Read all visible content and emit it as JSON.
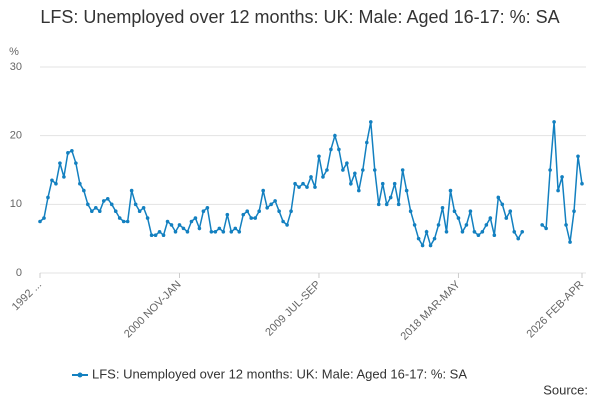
{
  "chart_data": {
    "type": "line",
    "title": "LFS: Unemployed over 12 months: UK: Male: Aged 16-17: %: SA",
    "y_label": "%",
    "source": "Source:",
    "categories": [
      "1992 ...",
      null,
      null,
      null,
      null,
      null,
      null,
      null,
      null,
      null,
      null,
      null,
      null,
      null,
      null,
      null,
      null,
      null,
      null,
      null,
      null,
      null,
      null,
      null,
      null,
      null,
      null,
      null,
      null,
      null,
      null,
      null,
      null,
      null,
      null,
      "2000 NOV-JAN",
      null,
      null,
      null,
      null,
      null,
      null,
      null,
      null,
      null,
      null,
      null,
      null,
      null,
      null,
      null,
      null,
      null,
      null,
      null,
      null,
      null,
      null,
      null,
      null,
      null,
      null,
      null,
      null,
      null,
      null,
      null,
      null,
      null,
      null,
      "2009 JUL-SEP",
      null,
      null,
      null,
      null,
      null,
      null,
      null,
      null,
      null,
      null,
      null,
      null,
      null,
      null,
      null,
      null,
      null,
      null,
      null,
      null,
      null,
      null,
      null,
      null,
      null,
      null,
      null,
      null,
      null,
      null,
      null,
      null,
      null,
      null,
      "2018 MAR-MAY",
      null,
      null,
      null,
      null,
      null,
      null,
      null,
      null,
      null,
      null,
      null,
      null,
      null,
      null,
      null,
      null,
      null,
      null,
      null,
      null,
      null,
      null,
      null,
      null,
      null,
      null,
      null,
      null,
      null,
      null,
      "2026 FEB-APR"
    ],
    "series": [
      {
        "name": "LFS: Unemployed over 12 months: UK: Male: Aged 16-17: %: SA",
        "color": "#1380c0",
        "values": [
          7.5,
          8,
          11,
          13.5,
          13,
          16,
          14,
          17.5,
          17.8,
          16,
          13,
          12,
          10,
          9,
          9.5,
          9,
          10.5,
          10.8,
          10,
          9,
          8,
          7.5,
          7.5,
          12,
          10,
          9,
          9.5,
          8,
          5.5,
          5.5,
          6,
          5.5,
          7.5,
          7,
          6,
          7,
          6.5,
          6,
          7.5,
          8,
          6.5,
          9,
          9.5,
          6,
          6,
          6.5,
          6,
          8.5,
          6,
          6.5,
          6,
          8.5,
          9,
          8,
          8,
          9,
          12,
          9.5,
          10,
          10.5,
          9,
          7.5,
          7,
          9,
          13,
          12.5,
          13,
          12.5,
          14,
          12.5,
          17,
          14,
          15,
          18,
          20,
          18,
          15,
          16,
          13,
          14.5,
          12,
          15,
          19,
          22,
          15,
          10,
          13,
          10,
          11,
          13,
          10,
          15,
          12,
          9,
          7,
          5,
          4,
          6,
          4,
          5,
          7,
          9.5,
          6,
          12,
          9,
          8,
          6,
          7,
          9,
          6,
          5.5,
          6,
          7,
          8,
          5.5,
          11,
          10,
          8,
          9,
          6,
          5,
          6,
          null,
          null,
          null,
          null,
          7,
          6.5,
          15,
          22,
          12,
          14,
          7,
          4.5,
          9,
          17,
          13
        ]
      }
    ],
    "ylim": [
      0,
      30
    ],
    "yticks": [
      0,
      10,
      20,
      30
    ],
    "grid": true
  }
}
